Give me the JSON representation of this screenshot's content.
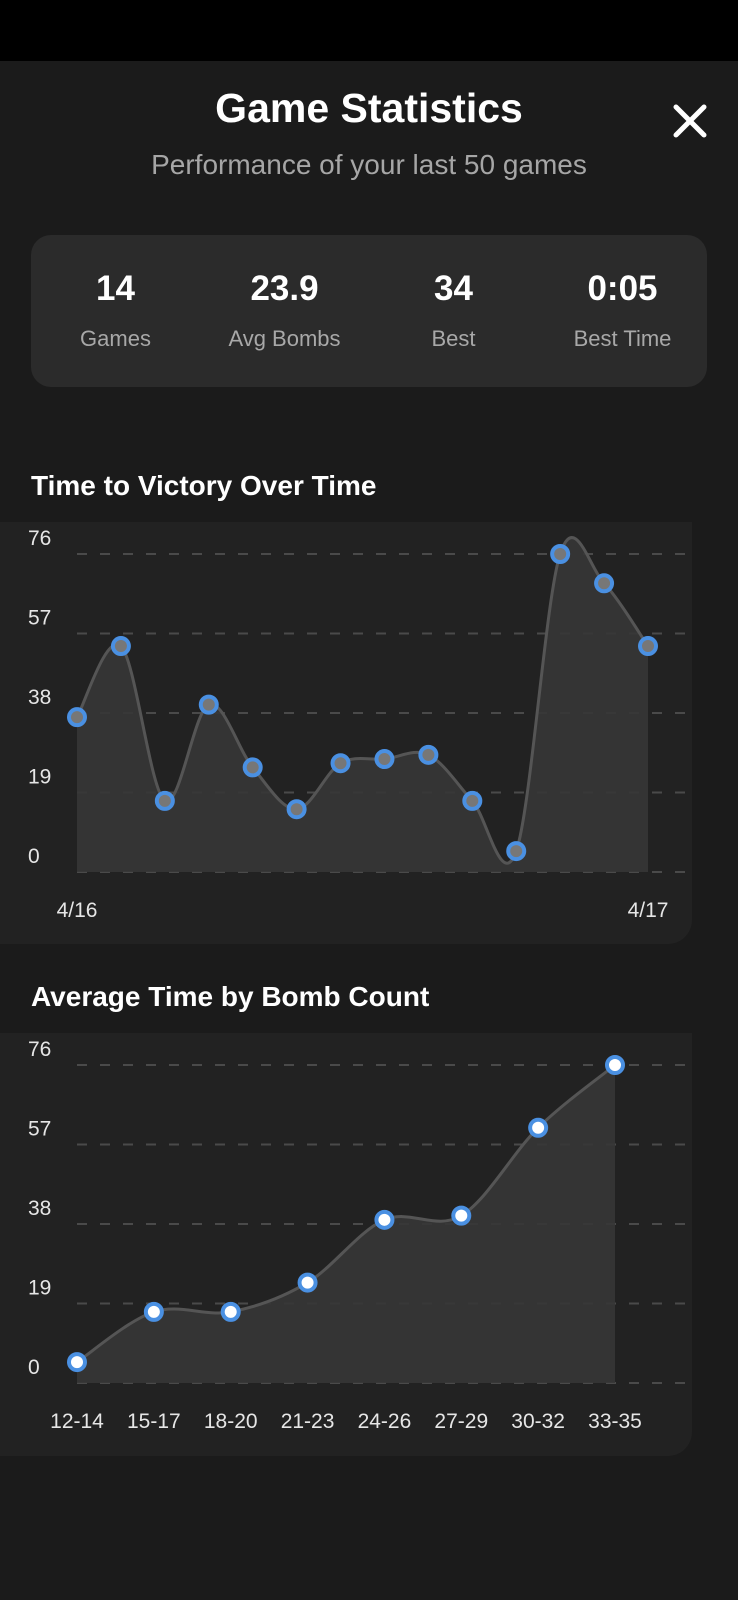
{
  "header": {
    "title": "Game Statistics",
    "subtitle": "Performance of your last 50 games",
    "close_icon": "close-icon"
  },
  "stats": [
    {
      "value": "14",
      "label": "Games"
    },
    {
      "value": "23.9",
      "label": "Avg Bombs"
    },
    {
      "value": "34",
      "label": "Best"
    },
    {
      "value": "0:05",
      "label": "Best Time"
    }
  ],
  "colors": {
    "accent": "#4a90e2",
    "line": "#555555",
    "fill": "#363636",
    "grid": "#4a4a4a"
  },
  "chart_data": [
    {
      "type": "area",
      "title": "Time to Victory Over Time",
      "x_tick_labels": [
        "4/16",
        "4/17"
      ],
      "y_ticks": [
        0,
        19,
        38,
        57,
        76
      ],
      "ylim": [
        0,
        76
      ],
      "grid": true,
      "values": [
        37,
        54,
        17,
        40,
        25,
        15,
        26,
        27,
        28,
        17,
        5,
        76,
        69,
        54
      ]
    },
    {
      "type": "area",
      "title": "Average Time by Bomb Count",
      "categories": [
        "12-14",
        "15-17",
        "18-20",
        "21-23",
        "24-26",
        "27-29",
        "30-32",
        "33-35"
      ],
      "y_ticks": [
        0,
        19,
        38,
        57,
        76
      ],
      "ylim": [
        0,
        76
      ],
      "grid": true,
      "values": [
        5,
        17,
        17,
        24,
        39,
        40,
        61,
        76
      ]
    }
  ]
}
